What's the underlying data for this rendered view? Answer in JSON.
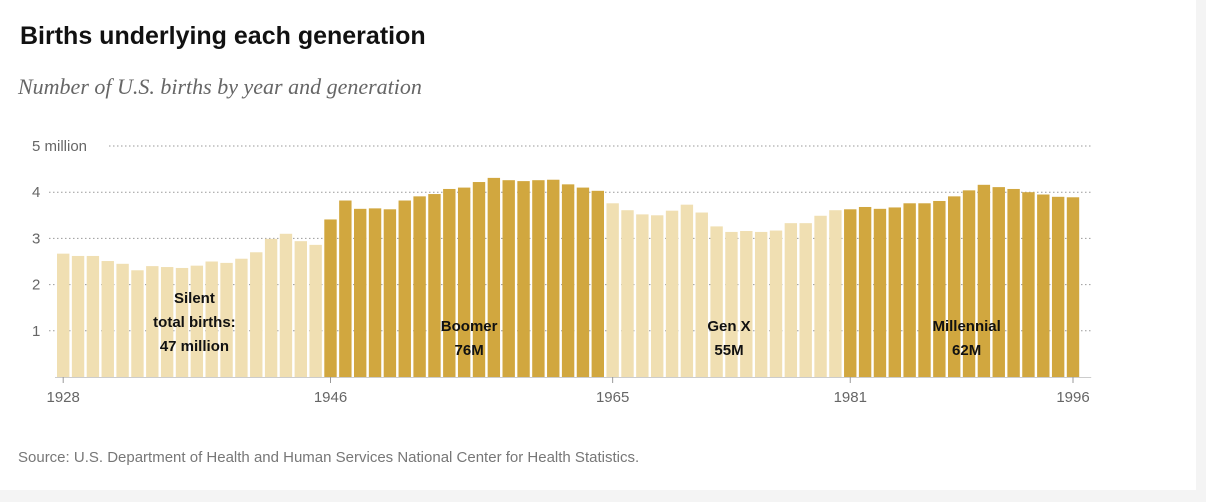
{
  "chart_data": {
    "type": "bar",
    "title": "Births underlying each generation",
    "subtitle": "Number of U.S. births by year and generation",
    "source": "Source: U.S. Department of Health and Human Services National Center for Health Statistics.",
    "unit": "million births",
    "ylim": [
      0,
      5
    ],
    "yticks": [
      {
        "value": 5,
        "label": "5 million"
      },
      {
        "value": 4,
        "label": "4"
      },
      {
        "value": 3,
        "label": "3"
      },
      {
        "value": 2,
        "label": "2"
      },
      {
        "value": 1,
        "label": "1"
      }
    ],
    "xticks": [
      {
        "year": 1928,
        "label": "1928"
      },
      {
        "year": 1946,
        "label": "1946"
      },
      {
        "year": 1965,
        "label": "1965"
      },
      {
        "year": 1981,
        "label": "1981"
      },
      {
        "year": 1996,
        "label": "1996"
      }
    ],
    "start_year": 1928,
    "values": [
      2.67,
      2.62,
      2.62,
      2.51,
      2.45,
      2.31,
      2.4,
      2.38,
      2.36,
      2.41,
      2.5,
      2.47,
      2.56,
      2.7,
      2.99,
      3.1,
      2.94,
      2.86,
      3.41,
      3.82,
      3.64,
      3.65,
      3.63,
      3.82,
      3.91,
      3.96,
      4.07,
      4.1,
      4.22,
      4.31,
      4.26,
      4.24,
      4.26,
      4.27,
      4.17,
      4.1,
      4.03,
      3.76,
      3.61,
      3.52,
      3.5,
      3.6,
      3.73,
      3.56,
      3.26,
      3.14,
      3.16,
      3.14,
      3.17,
      3.33,
      3.33,
      3.49,
      3.61,
      3.63,
      3.68,
      3.64,
      3.67,
      3.76,
      3.76,
      3.81,
      3.91,
      4.04,
      4.16,
      4.11,
      4.07,
      4.0,
      3.95,
      3.9,
      3.89
    ],
    "series": [
      {
        "name": "Silent",
        "start": 1928,
        "end": 1945,
        "color": "#f0dfb2",
        "label_lines": [
          "Silent",
          "total births:",
          "47 million"
        ]
      },
      {
        "name": "Boomer",
        "start": 1946,
        "end": 1964,
        "color": "#d1a73f",
        "label_lines": [
          "Boomer",
          "76M"
        ]
      },
      {
        "name": "Gen X",
        "start": 1965,
        "end": 1980,
        "color": "#f0dfb2",
        "label_lines": [
          "Gen X",
          "55M"
        ]
      },
      {
        "name": "Millennial",
        "start": 1981,
        "end": 1996,
        "color": "#d1a73f",
        "label_lines": [
          "Millennial",
          "62M"
        ]
      }
    ],
    "grid": true
  }
}
